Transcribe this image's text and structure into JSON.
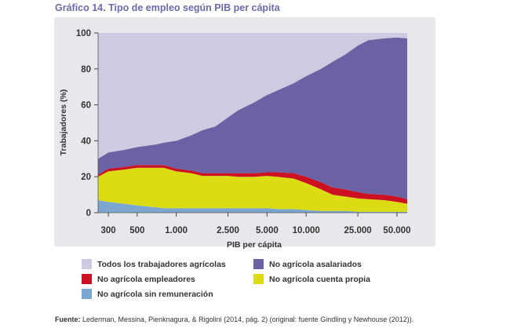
{
  "figure": {
    "title": "Gráfico 14. Tipo de empleo según PIB per cápita",
    "source_label": "Fuente:",
    "source_text": "Lederman, Messina, Pienknagura, & Rigolini (2014, pág. 2) (original: fuente Gindling y Newhouse (2012))."
  },
  "chart_data": {
    "type": "area",
    "title": "Gráfico 14. Tipo de empleo según PIB per cápita",
    "xlabel": "PIB per cápita",
    "ylabel": "Trabajadores (%)",
    "x_scale": "log",
    "xlim": [
      250,
      60000
    ],
    "ylim": [
      0,
      100
    ],
    "x_ticks": [
      300,
      500,
      1000,
      2500,
      5000,
      10000,
      25000,
      50000
    ],
    "x_tick_labels": [
      "300",
      "500",
      "1.000",
      "2.500",
      "5.000",
      "10.000",
      "25.000",
      "50.000"
    ],
    "y_ticks": [
      0,
      20,
      40,
      60,
      80,
      100
    ],
    "y_tick_labels": [
      "0",
      "20",
      "40",
      "60",
      "80",
      "100"
    ],
    "x": [
      250,
      300,
      400,
      500,
      700,
      800,
      1000,
      1300,
      1600,
      2000,
      2500,
      3000,
      4000,
      5000,
      6000,
      8000,
      10000,
      13000,
      16000,
      20000,
      25000,
      30000,
      40000,
      50000,
      60000
    ],
    "stacked": true,
    "series": [
      {
        "name": "No agrícola sin remuneración",
        "color": "#7aa6d0",
        "values": [
          7,
          6,
          5,
          4,
          3,
          2.5,
          2.5,
          2.5,
          2.5,
          2.5,
          2.5,
          2.5,
          2.5,
          2.5,
          2,
          2,
          1.5,
          1,
          1,
          1,
          0.5,
          0.5,
          0.5,
          0.5,
          0.5
        ]
      },
      {
        "name": "No agrícola cuenta propia",
        "color": "#dcdc14",
        "values": [
          13,
          17,
          19,
          21,
          22,
          22.5,
          20.5,
          19.5,
          18,
          18,
          18,
          17.5,
          17.5,
          18,
          18,
          17,
          15,
          12,
          9,
          8,
          7.5,
          7,
          6.5,
          5.5,
          4.5
        ]
      },
      {
        "name": "No agrícola empleadores",
        "color": "#cc1122",
        "values": [
          1,
          1.5,
          1.5,
          1.5,
          1.5,
          1.5,
          1.5,
          1.5,
          1.5,
          1.5,
          1.5,
          2,
          2,
          2,
          2.5,
          3,
          3.5,
          4,
          4,
          4,
          3.5,
          3,
          3,
          3,
          2.5
        ]
      },
      {
        "name": "No agrícola asalariados",
        "color": "#6a62a4",
        "values": [
          9,
          9,
          9.5,
          10,
          11.5,
          12.5,
          15.5,
          19.5,
          24,
          26,
          31,
          35,
          39.5,
          43,
          45.5,
          50,
          56,
          63,
          70,
          75,
          81.5,
          85.5,
          87,
          88.5,
          89.5
        ]
      },
      {
        "name": "Todos los trabajadores agrícolas",
        "color": "#cdcae2",
        "values": [
          70,
          66.5,
          65,
          63.5,
          62,
          61,
          60,
          57,
          54,
          52,
          47,
          43,
          38.5,
          34.5,
          32,
          28,
          24,
          20,
          16,
          12,
          7,
          4,
          3,
          2.5,
          3
        ]
      }
    ]
  },
  "legend": {
    "items": [
      {
        "label": "Todos los trabajadores agrícolas",
        "color": "#cdcae2"
      },
      {
        "label": "No agrícola asalariados",
        "color": "#6a62a4"
      },
      {
        "label": "No agrícola empleadores",
        "color": "#cc1122"
      },
      {
        "label": "No agrícola cuenta propia",
        "color": "#dcdc14"
      },
      {
        "label": "No agrícola sin remuneración",
        "color": "#7aa6d0"
      }
    ]
  }
}
